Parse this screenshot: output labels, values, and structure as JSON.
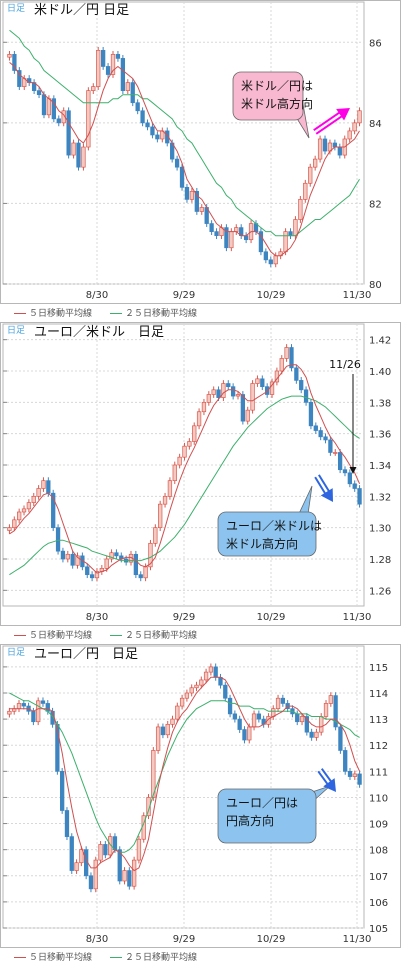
{
  "chart_data": [
    {
      "type": "candlestick",
      "period_label": "日足",
      "title": "米ドル／円 日足",
      "x_ticks": [
        "8/30",
        "9/29",
        "10/29",
        "11/30"
      ],
      "ylim": [
        80,
        87
      ],
      "y_ticks": [
        80,
        82,
        84,
        86
      ],
      "grid": true,
      "legend": [
        "５日移動平均線",
        "２５日移動平均線"
      ],
      "callout": "米ドル／円は\n米ドル高方向",
      "arrow_direction": "up",
      "close": [
        85.7,
        85.3,
        84.9,
        85.1,
        85.0,
        84.8,
        84.7,
        84.2,
        84.6,
        84.1,
        84.0,
        84.3,
        83.2,
        83.5,
        82.9,
        83.4,
        84.8,
        84.9,
        85.8,
        85.4,
        85.2,
        85.7,
        85.6,
        84.8,
        85.0,
        84.5,
        84.3,
        84.0,
        83.9,
        83.7,
        83.6,
        83.8,
        83.5,
        83.1,
        82.9,
        82.4,
        82.1,
        82.3,
        81.8,
        81.9,
        81.5,
        81.3,
        81.2,
        81.4,
        80.9,
        81.3,
        81.4,
        81.2,
        81.1,
        81.5,
        81.3,
        80.8,
        80.6,
        80.5,
        80.7,
        80.8,
        81.3,
        81.2,
        81.6,
        82.1,
        82.5,
        82.9,
        83.1,
        83.6,
        83.3,
        83.5,
        83.4,
        83.2,
        83.6,
        83.8,
        84.0,
        84.3
      ],
      "ma5": [
        85.5,
        85.4,
        85.2,
        85.1,
        85.0,
        85.0,
        84.9,
        84.7,
        84.6,
        84.5,
        84.3,
        84.2,
        84.0,
        83.8,
        83.6,
        83.5,
        83.7,
        84.0,
        84.4,
        84.8,
        85.1,
        85.3,
        85.4,
        85.3,
        85.2,
        85.1,
        84.9,
        84.6,
        84.3,
        84.0,
        83.8,
        83.8,
        83.7,
        83.5,
        83.3,
        83.0,
        82.6,
        82.4,
        82.2,
        82.1,
        81.9,
        81.7,
        81.5,
        81.4,
        81.3,
        81.3,
        81.3,
        81.2,
        81.2,
        81.3,
        81.3,
        81.2,
        81.0,
        80.8,
        80.7,
        80.7,
        80.8,
        80.9,
        81.1,
        81.4,
        81.8,
        82.2,
        82.5,
        82.8,
        83.1,
        83.3,
        83.4,
        83.4,
        83.4,
        83.5,
        83.6,
        83.8
      ],
      "ma25": [
        86.3,
        86.2,
        86.1,
        85.9,
        85.8,
        85.6,
        85.5,
        85.3,
        85.2,
        85.1,
        85.0,
        84.9,
        84.8,
        84.7,
        84.6,
        84.5,
        84.5,
        84.5,
        84.5,
        84.5,
        84.5,
        84.6,
        84.6,
        84.7,
        84.7,
        84.7,
        84.7,
        84.6,
        84.6,
        84.5,
        84.4,
        84.3,
        84.2,
        84.1,
        83.9,
        83.8,
        83.6,
        83.5,
        83.3,
        83.1,
        82.9,
        82.7,
        82.5,
        82.4,
        82.2,
        82.1,
        81.9,
        81.8,
        81.7,
        81.6,
        81.5,
        81.4,
        81.3,
        81.3,
        81.2,
        81.2,
        81.2,
        81.2,
        81.2,
        81.3,
        81.4,
        81.5,
        81.6,
        81.6,
        81.7,
        81.8,
        81.9,
        82.0,
        82.1,
        82.2,
        82.4,
        82.6
      ]
    },
    {
      "type": "candlestick",
      "period_label": "日足",
      "title": "ユーロ／米ドル　日足",
      "x_ticks": [
        "8/30",
        "9/29",
        "10/29",
        "11/30"
      ],
      "ylim": [
        1.25,
        1.43
      ],
      "y_ticks": [
        1.26,
        1.28,
        1.3,
        1.32,
        1.34,
        1.36,
        1.38,
        1.4,
        1.42
      ],
      "grid": true,
      "legend": [
        "５日移動平均線",
        "２５日移動平均線"
      ],
      "callout": "ユーロ／米ドルは\n米ドル高方向",
      "arrow_direction": "down",
      "marker_label": "11/26",
      "close": [
        1.3,
        1.305,
        1.31,
        1.312,
        1.316,
        1.32,
        1.325,
        1.33,
        1.322,
        1.3,
        1.285,
        1.28,
        1.283,
        1.276,
        1.282,
        1.275,
        1.27,
        1.268,
        1.272,
        1.274,
        1.28,
        1.284,
        1.282,
        1.28,
        1.278,
        1.283,
        1.27,
        1.268,
        1.275,
        1.29,
        1.3,
        1.315,
        1.32,
        1.33,
        1.34,
        1.345,
        1.352,
        1.355,
        1.365,
        1.374,
        1.38,
        1.385,
        1.388,
        1.383,
        1.392,
        1.39,
        1.384,
        1.385,
        1.368,
        1.375,
        1.392,
        1.395,
        1.39,
        1.385,
        1.393,
        1.4,
        1.408,
        1.415,
        1.402,
        1.394,
        1.388,
        1.38,
        1.365,
        1.362,
        1.358,
        1.356,
        1.348,
        1.348,
        1.337,
        1.335,
        1.328,
        1.325,
        1.315
      ],
      "ma5": [
        1.296,
        1.298,
        1.302,
        1.306,
        1.309,
        1.313,
        1.317,
        1.321,
        1.322,
        1.319,
        1.312,
        1.303,
        1.294,
        1.285,
        1.281,
        1.279,
        1.277,
        1.274,
        1.271,
        1.272,
        1.273,
        1.276,
        1.278,
        1.28,
        1.281,
        1.281,
        1.279,
        1.276,
        1.275,
        1.277,
        1.281,
        1.29,
        1.3,
        1.311,
        1.321,
        1.33,
        1.338,
        1.345,
        1.351,
        1.358,
        1.365,
        1.372,
        1.378,
        1.382,
        1.386,
        1.388,
        1.388,
        1.387,
        1.384,
        1.381,
        1.381,
        1.383,
        1.385,
        1.387,
        1.391,
        1.395,
        1.399,
        1.403,
        1.404,
        1.404,
        1.401,
        1.396,
        1.386,
        1.378,
        1.371,
        1.364,
        1.358,
        1.354,
        1.349,
        1.345,
        1.34,
        1.335,
        1.328
      ],
      "ma25": [
        1.27,
        1.272,
        1.274,
        1.276,
        1.279,
        1.282,
        1.285,
        1.288,
        1.29,
        1.291,
        1.292,
        1.292,
        1.291,
        1.29,
        1.289,
        1.288,
        1.287,
        1.285,
        1.284,
        1.283,
        1.282,
        1.281,
        1.28,
        1.279,
        1.279,
        1.279,
        1.279,
        1.279,
        1.28,
        1.281,
        1.283,
        1.285,
        1.288,
        1.291,
        1.294,
        1.298,
        1.302,
        1.307,
        1.312,
        1.317,
        1.322,
        1.327,
        1.332,
        1.337,
        1.342,
        1.347,
        1.352,
        1.356,
        1.36,
        1.364,
        1.367,
        1.37,
        1.373,
        1.376,
        1.378,
        1.38,
        1.382,
        1.383,
        1.384,
        1.384,
        1.384,
        1.383,
        1.382,
        1.381,
        1.379,
        1.377,
        1.374,
        1.371,
        1.368,
        1.365,
        1.362,
        1.359,
        1.357
      ]
    },
    {
      "type": "candlestick",
      "period_label": "日足",
      "title": "ユーロ／円　日足",
      "x_ticks": [
        "8/30",
        "9/29",
        "10/29",
        "11/30"
      ],
      "ylim": [
        105,
        115.8
      ],
      "y_ticks": [
        105,
        106,
        107,
        108,
        109,
        110,
        111,
        112,
        113,
        114,
        115
      ],
      "grid": true,
      "legend": [
        "５日移動平均線",
        "２５日移動平均線"
      ],
      "callout": "ユーロ／円は\n円高方向",
      "arrow_direction": "down",
      "close": [
        113.3,
        113.4,
        113.6,
        113.5,
        113.3,
        112.9,
        113.7,
        113.6,
        113.3,
        112.8,
        111.0,
        109.5,
        108.5,
        107.2,
        107.5,
        108.0,
        107.0,
        106.5,
        107.6,
        108.2,
        107.8,
        108.5,
        108.0,
        106.8,
        107.2,
        106.6,
        107.6,
        108.4,
        109.3,
        110.0,
        111.8,
        112.7,
        112.4,
        112.8,
        113.0,
        113.5,
        113.8,
        114.0,
        114.2,
        114.3,
        114.5,
        114.8,
        115.0,
        114.6,
        114.3,
        113.8,
        113.2,
        113.0,
        112.6,
        112.2,
        112.7,
        113.2,
        113.0,
        112.8,
        113.1,
        113.4,
        113.8,
        113.6,
        113.4,
        113.2,
        112.9,
        113.1,
        112.5,
        112.3,
        112.5,
        113.1,
        113.6,
        113.9,
        112.7,
        111.8,
        111.0,
        110.8,
        110.9,
        110.5
      ],
      "ma5": [
        113.4,
        113.4,
        113.4,
        113.4,
        113.4,
        113.3,
        113.4,
        113.4,
        113.4,
        113.3,
        112.6,
        111.7,
        110.6,
        109.6,
        108.7,
        108.1,
        107.6,
        107.3,
        107.3,
        107.5,
        107.6,
        107.7,
        108.0,
        107.9,
        107.7,
        107.4,
        107.2,
        107.3,
        107.8,
        108.4,
        109.4,
        110.4,
        111.2,
        111.9,
        112.5,
        112.9,
        113.2,
        113.4,
        113.7,
        114.0,
        114.2,
        114.4,
        114.6,
        114.6,
        114.6,
        114.5,
        114.2,
        113.8,
        113.4,
        113.0,
        112.7,
        112.7,
        112.7,
        112.8,
        113.0,
        113.1,
        113.2,
        113.3,
        113.5,
        113.5,
        113.4,
        113.2,
        113.0,
        112.8,
        112.7,
        112.7,
        112.8,
        113.0,
        113.0,
        112.8,
        112.5,
        112.0,
        111.4,
        111.0
      ],
      "ma25": [
        114.0,
        113.9,
        113.8,
        113.7,
        113.7,
        113.6,
        113.5,
        113.4,
        113.3,
        113.1,
        112.8,
        112.5,
        112.1,
        111.7,
        111.2,
        110.7,
        110.2,
        109.7,
        109.2,
        108.8,
        108.5,
        108.2,
        108.0,
        107.9,
        107.9,
        108.0,
        108.2,
        108.6,
        109.0,
        109.5,
        110.1,
        110.6,
        111.1,
        111.6,
        112.0,
        112.4,
        112.7,
        113.0,
        113.2,
        113.4,
        113.5,
        113.6,
        113.7,
        113.7,
        113.7,
        113.7,
        113.6,
        113.6,
        113.5,
        113.5,
        113.5,
        113.4,
        113.4,
        113.4,
        113.3,
        113.3,
        113.3,
        113.3,
        113.3,
        113.3,
        113.2,
        113.2,
        113.2,
        113.1,
        113.1,
        113.1,
        113.0,
        113.0,
        112.9,
        112.8,
        112.7,
        112.6,
        112.4,
        112.3
      ]
    }
  ],
  "colors": {
    "up_candle": "#f5c8c0",
    "up_candle_border": "#d85a50",
    "down_candle": "#3d85c0",
    "ma5": "#d05050",
    "ma25": "#3cb06c",
    "callout_pink": "#f8b8d0",
    "callout_blue": "#8cc4ef",
    "arrow_magenta": "#ff00e6",
    "arrow_blue": "#2f66e0",
    "grid": "#d8d8d8",
    "panel_border": "#b7b7b7"
  }
}
